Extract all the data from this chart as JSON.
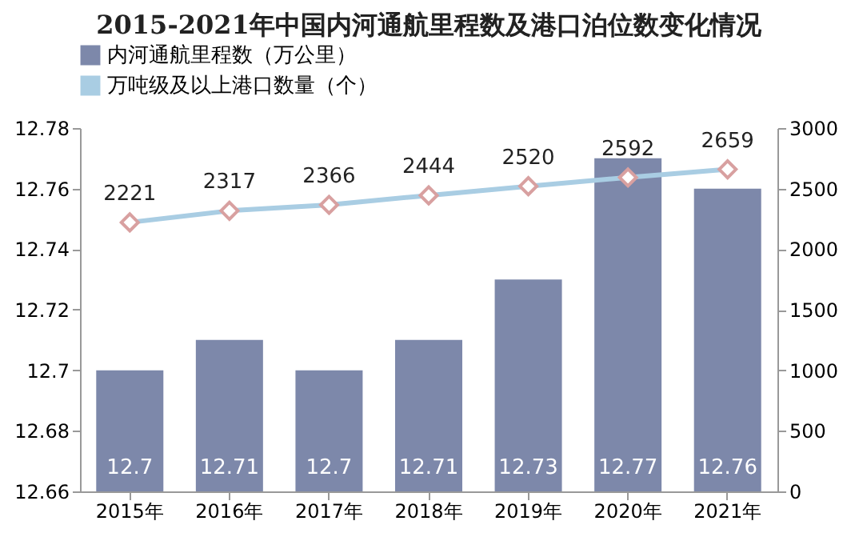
{
  "chart_data": {
    "type": "bar",
    "title": "2015-2021年中国内河通航里程数及港口泊位数变化情况",
    "categories": [
      "2015年",
      "2016年",
      "2017年",
      "2018年",
      "2019年",
      "2020年",
      "2021年"
    ],
    "series": [
      {
        "name": "内河通航里程数（万公里）",
        "color": "#7d88aa",
        "values": [
          12.7,
          12.71,
          12.7,
          12.71,
          12.73,
          12.77,
          12.76
        ]
      },
      {
        "name": "万吨级及以上港口数量（个）",
        "type": "line",
        "axis": "y2",
        "color": "#a9cde3",
        "marker": "diamond",
        "values": [
          2221,
          2317,
          2366,
          2444,
          2520,
          2592,
          2659
        ]
      }
    ],
    "ylim": [
      12.66,
      12.78
    ],
    "yticks": [
      12.66,
      12.68,
      12.7,
      12.72,
      12.74,
      12.76,
      12.78
    ],
    "y2lim": [
      0,
      3000
    ],
    "y2ticks": [
      0,
      500,
      1000,
      1500,
      2000,
      2500,
      3000
    ],
    "data_labels": true,
    "grid": false,
    "legend": "top"
  }
}
